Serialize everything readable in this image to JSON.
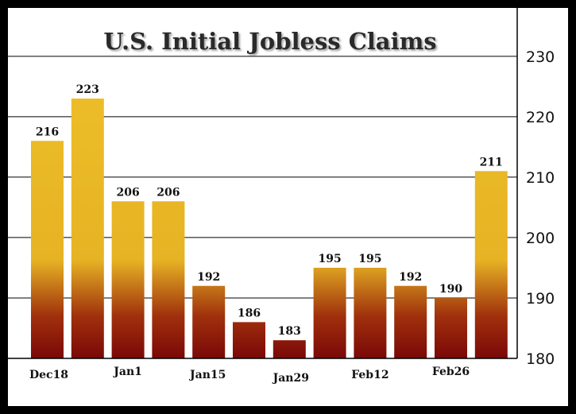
{
  "chart_data": {
    "type": "bar",
    "title": "U.S. Initial Jobless Claims",
    "xlabel": "",
    "ylabel": "",
    "ylim": [
      180,
      238
    ],
    "yticks": [
      180,
      190,
      200,
      210,
      220,
      230
    ],
    "y_axis_side": "right",
    "grid": true,
    "categories": [
      "",
      "",
      "",
      "",
      "",
      "",
      "",
      "",
      "",
      "",
      "",
      ""
    ],
    "x_tick_labels": [
      "Dec18",
      "Jan1",
      "Jan15",
      "Jan29",
      "Feb12",
      "Feb26"
    ],
    "values": [
      216,
      223,
      206,
      206,
      192,
      186,
      183,
      195,
      195,
      192,
      190,
      211
    ],
    "data_labels": [
      "216",
      "223",
      "206",
      "206",
      "192",
      "186",
      "183",
      "195",
      "195",
      "192",
      "190",
      "211"
    ],
    "colors": {
      "bar_top": "#f0c22a",
      "bar_mid": "#e6b324",
      "bar_low": "#a0300c",
      "bar_bottom": "#7a0808",
      "frame": "#000000",
      "grid": "#000000"
    }
  }
}
